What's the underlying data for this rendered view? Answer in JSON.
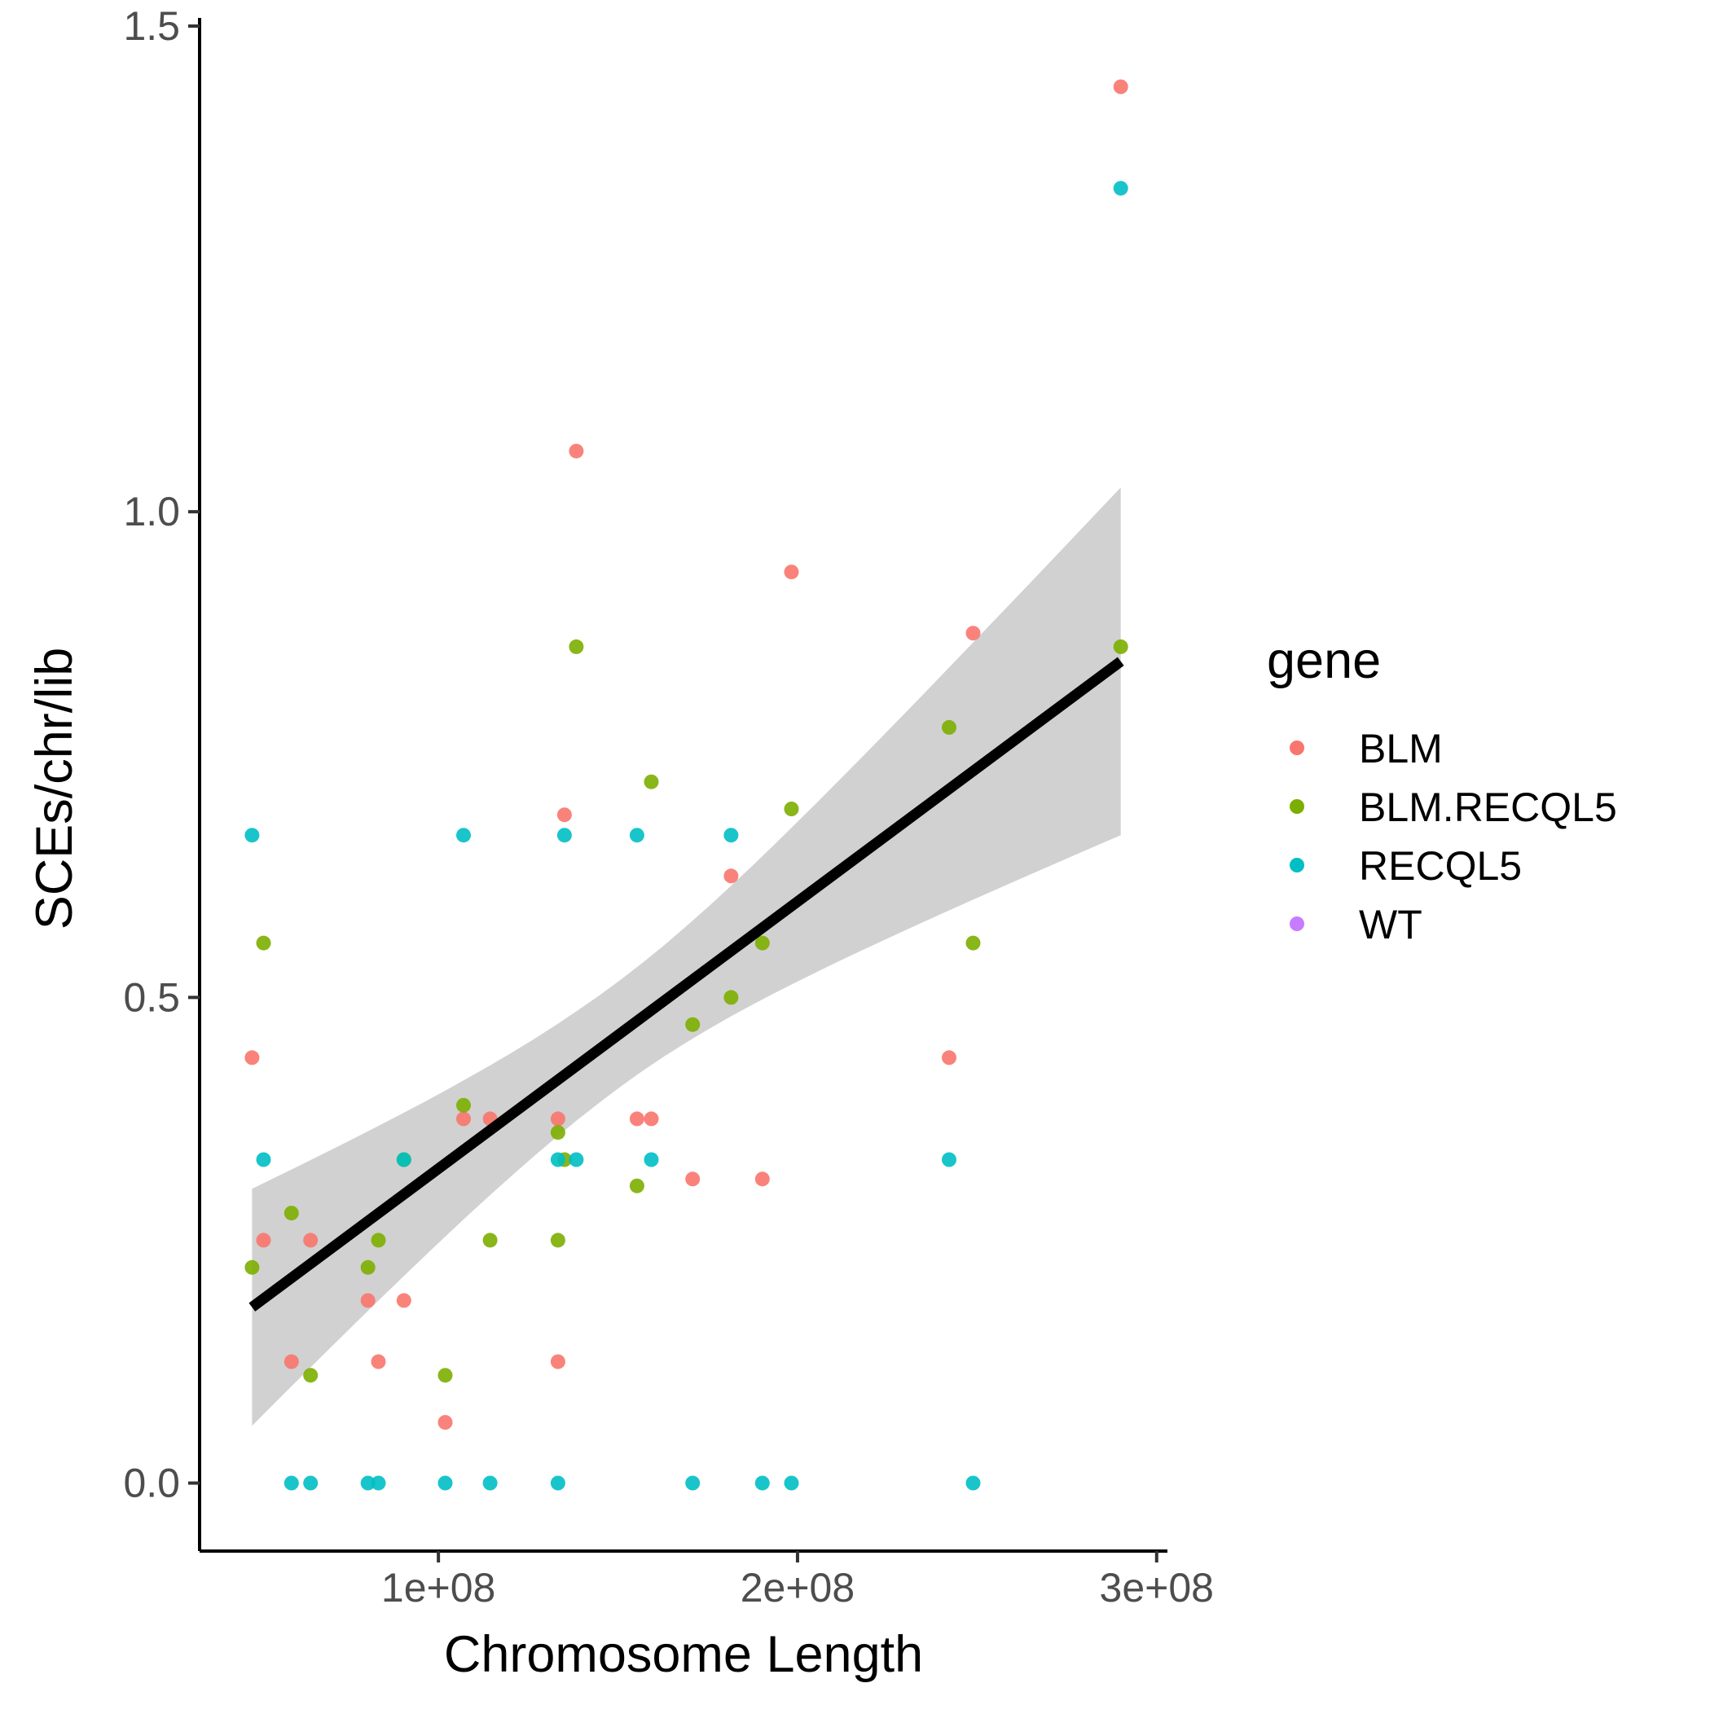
{
  "chart_data": {
    "type": "scatter",
    "xlabel": "Chromosome Length",
    "ylabel": "SCEs/chr/lib",
    "xlim": [
      33500000,
      303000000
    ],
    "ylim": [
      -0.07,
      1.5
    ],
    "x_ticks": [
      100000000,
      200000000,
      300000000
    ],
    "x_tick_labels": [
      "1e+08",
      "2e+08",
      "3e+08"
    ],
    "y_ticks": [
      0.0,
      0.5,
      1.0,
      1.5
    ],
    "y_tick_labels": [
      "0.0",
      "0.5",
      "1.0",
      "1.5"
    ],
    "grid": false,
    "legend": {
      "title": "gene",
      "placement": "right",
      "entries": [
        {
          "name": "BLM",
          "color": "#F8766D"
        },
        {
          "name": "BLM.RECQL5",
          "color": "#7CAE00"
        },
        {
          "name": "RECQL5",
          "color": "#00BFC4"
        },
        {
          "name": "WT",
          "color": "#C77CFF"
        }
      ]
    },
    "series": [
      {
        "name": "BLM",
        "color": "#F8766D",
        "points": [
          [
            48100000,
            0.438
          ],
          [
            51300000,
            0.25
          ],
          [
            59100000,
            0.125
          ],
          [
            64400000,
            0.25
          ],
          [
            80400000,
            0.188
          ],
          [
            83300000,
            0.125
          ],
          [
            90400000,
            0.188
          ],
          [
            101900000,
            0.0625
          ],
          [
            107000000,
            0.375
          ],
          [
            114400000,
            0.375
          ],
          [
            133300000,
            0.375
          ],
          [
            133300000,
            0.125
          ],
          [
            135100000,
            0.688
          ],
          [
            138400000,
            1.0625
          ],
          [
            155300000,
            0.375
          ],
          [
            159300000,
            0.375
          ],
          [
            170800000,
            0.313
          ],
          [
            181500000,
            0.625
          ],
          [
            190200000,
            0.313
          ],
          [
            198300000,
            0.938
          ],
          [
            242200000,
            0.438
          ],
          [
            248900000,
            0.875
          ],
          [
            290000000,
            1.4375
          ]
        ]
      },
      {
        "name": "BLM.RECQL5",
        "color": "#7CAE00",
        "points": [
          [
            48100000,
            0.222
          ],
          [
            51300000,
            0.556
          ],
          [
            59100000,
            0.278
          ],
          [
            64400000,
            0.111
          ],
          [
            80400000,
            0.222
          ],
          [
            83300000,
            0.25
          ],
          [
            90400000,
            0.333
          ],
          [
            101900000,
            0.111
          ],
          [
            107000000,
            0.389
          ],
          [
            114400000,
            0.25
          ],
          [
            133300000,
            0.361
          ],
          [
            133300000,
            0.25
          ],
          [
            135100000,
            0.333
          ],
          [
            138400000,
            0.861
          ],
          [
            155300000,
            0.306
          ],
          [
            159300000,
            0.722
          ],
          [
            170800000,
            0.472
          ],
          [
            181500000,
            0.5
          ],
          [
            190200000,
            0.556
          ],
          [
            198300000,
            0.694
          ],
          [
            242200000,
            0.778
          ],
          [
            248900000,
            0.556
          ],
          [
            290000000,
            0.861
          ]
        ]
      },
      {
        "name": "RECQL5",
        "color": "#00BFC4",
        "points": [
          [
            48100000,
            0.667
          ],
          [
            51300000,
            0.333
          ],
          [
            59100000,
            0.0
          ],
          [
            64400000,
            0.0
          ],
          [
            80400000,
            0.0
          ],
          [
            83300000,
            0.0
          ],
          [
            90400000,
            0.333
          ],
          [
            101900000,
            0.0
          ],
          [
            107000000,
            0.667
          ],
          [
            114400000,
            0.0
          ],
          [
            133300000,
            0.0
          ],
          [
            133300000,
            0.333
          ],
          [
            135100000,
            0.667
          ],
          [
            138400000,
            0.333
          ],
          [
            155300000,
            0.667
          ],
          [
            159300000,
            0.333
          ],
          [
            170800000,
            0.0
          ],
          [
            181500000,
            0.667
          ],
          [
            190200000,
            0.0
          ],
          [
            198300000,
            0.0
          ],
          [
            242200000,
            0.333
          ],
          [
            248900000,
            0.0
          ],
          [
            290000000,
            1.333
          ]
        ]
      },
      {
        "name": "WT",
        "color": "#C77CFF",
        "points": []
      }
    ],
    "smooth": {
      "method": "linear",
      "color": "#000000",
      "band_color": "#cccccc",
      "x_range": [
        48100000,
        290000000
      ],
      "fit_y": [
        0.181,
        0.846
      ],
      "band_lower": [
        0.059,
        0.667
      ],
      "band_upper": [
        0.303,
        1.029
      ]
    }
  }
}
